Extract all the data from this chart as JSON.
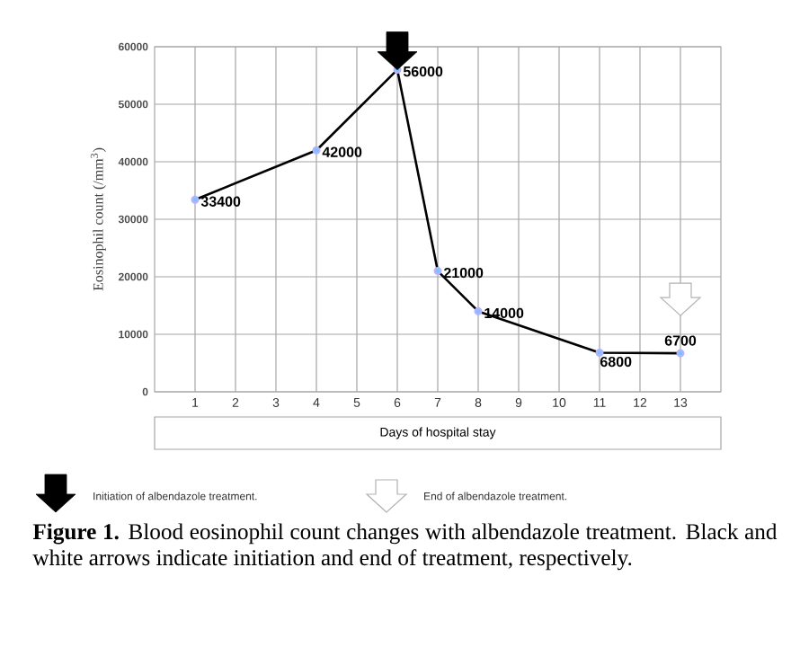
{
  "chart_data": {
    "type": "line",
    "ylabel": "Eosinophil count (/mm$^{3}$)",
    "xlabel": "Days of hospital stay",
    "x": [
      1,
      4,
      6,
      7,
      8,
      11,
      13
    ],
    "values": [
      33400,
      42000,
      56000,
      21000,
      14000,
      6800,
      6700
    ],
    "color": "#000000",
    "xlim": [
      0,
      14
    ],
    "xticks": [
      1,
      2,
      3,
      4,
      5,
      6,
      7,
      8,
      9,
      10,
      11,
      12,
      13
    ],
    "ylim": [
      0,
      60000
    ],
    "yticks": [
      0,
      10000,
      20000,
      30000,
      40000,
      50000,
      60000
    ],
    "grid": true,
    "marker": "circle",
    "line_style": "solid",
    "data_labels": true,
    "annotations": [
      "Initiation of albendazole treatment.",
      "End of albendazole treatment.",
      "**Figure 1.** Blood eosinophil count changes with albendazole treatment. Black and white arrows indicate initiation and end of treatment, respectively."
    ]
  }
}
